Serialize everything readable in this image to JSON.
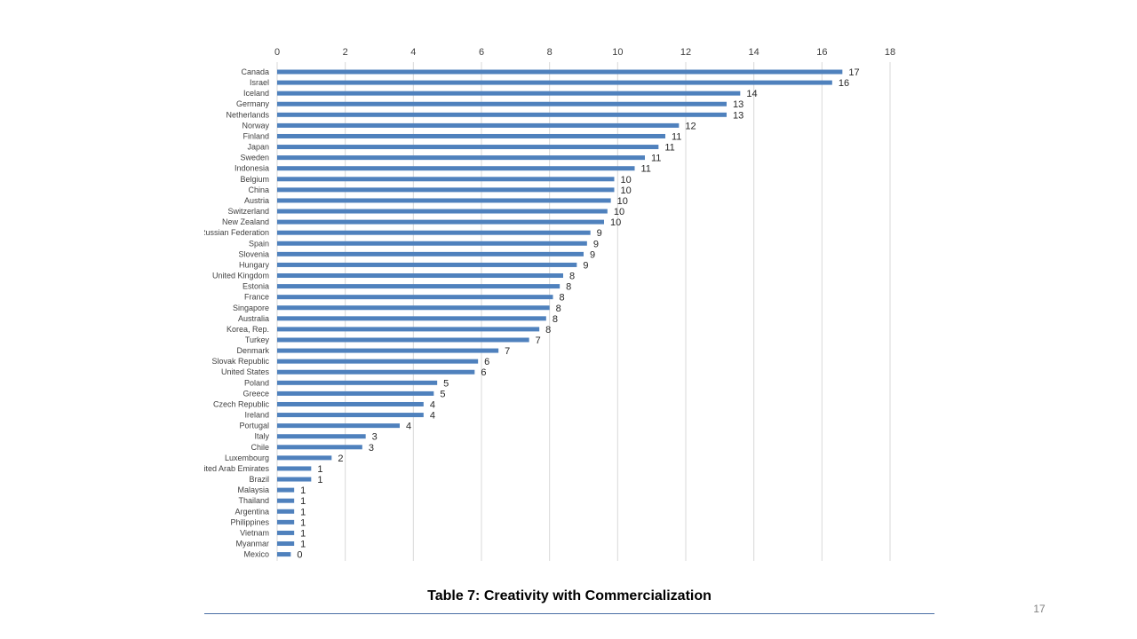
{
  "slide": {
    "caption": "Table 7: Creativity with Commercialization",
    "page_number": "17"
  },
  "colors": {
    "bar": "#4f81bd",
    "grid": "#d9d9d9",
    "footer_rule": "#4a6fa5"
  },
  "chart_data": {
    "type": "bar",
    "orientation": "horizontal",
    "title": "",
    "xlabel": "",
    "ylabel": "",
    "xlim": [
      0,
      18
    ],
    "x_ticks": [
      0,
      2,
      4,
      6,
      8,
      10,
      12,
      14,
      16,
      18
    ],
    "x_axis_position": "top",
    "grid": true,
    "data_labels": true,
    "categories": [
      "Canada",
      "Israel",
      "Iceland",
      "Germany",
      "Netherlands",
      "Norway",
      "Finland",
      "Japan",
      "Sweden",
      "Indonesia",
      "Belgium",
      "China",
      "Austria",
      "Switzerland",
      "New Zealand",
      "Russian Federation",
      "Spain",
      "Slovenia",
      "Hungary",
      "United Kingdom",
      "Estonia",
      "France",
      "Singapore",
      "Australia",
      "Korea, Rep.",
      "Turkey",
      "Denmark",
      "Slovak Republic",
      "United States",
      "Poland",
      "Greece",
      "Czech Republic",
      "Ireland",
      "Portugal",
      "Italy",
      "Chile",
      "Luxembourg",
      "United Arab Emirates",
      "Brazil",
      "Malaysia",
      "Thailand",
      "Argentina",
      "Philippines",
      "Vietnam",
      "Myanmar",
      "Mexico"
    ],
    "values": [
      16.6,
      16.3,
      13.6,
      13.2,
      13.2,
      11.8,
      11.4,
      11.2,
      10.8,
      10.5,
      9.9,
      9.9,
      9.8,
      9.7,
      9.6,
      9.2,
      9.1,
      9.0,
      8.8,
      8.4,
      8.3,
      8.1,
      8.0,
      7.9,
      7.7,
      7.4,
      6.5,
      5.9,
      5.8,
      4.7,
      4.6,
      4.3,
      4.3,
      3.6,
      2.6,
      2.5,
      1.6,
      1.0,
      1.0,
      0.5,
      0.5,
      0.5,
      0.5,
      0.5,
      0.5,
      0.4
    ],
    "labels": [
      "17",
      "16",
      "14",
      "13",
      "13",
      "12",
      "11",
      "11",
      "11",
      "11",
      "10",
      "10",
      "10",
      "10",
      "10",
      "9",
      "9",
      "9",
      "9",
      "8",
      "8",
      "8",
      "8",
      "8",
      "8",
      "7",
      "7",
      "6",
      "6",
      "5",
      "5",
      "4",
      "4",
      "4",
      "3",
      "3",
      "2",
      "1",
      "1",
      "1",
      "1",
      "1",
      "1",
      "1",
      "1",
      "0"
    ]
  }
}
